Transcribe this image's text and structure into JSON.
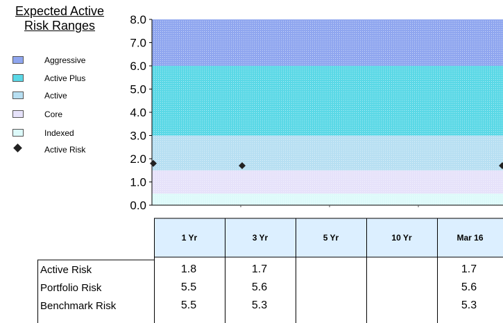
{
  "legend": {
    "title_line1": "Expected Active",
    "title_line2": "Risk Ranges",
    "items": [
      {
        "label": "Aggressive",
        "color": "#8fa6ef",
        "kind": "swatch"
      },
      {
        "label": "Active Plus",
        "color": "#5ad8e6",
        "kind": "swatch"
      },
      {
        "label": "Active",
        "color": "#b7dff2",
        "kind": "swatch"
      },
      {
        "label": "Core",
        "color": "#e6e2fa",
        "kind": "swatch"
      },
      {
        "label": "Indexed",
        "color": "#ddfafa",
        "kind": "swatch"
      },
      {
        "label": "Active Risk",
        "color": "#222222",
        "kind": "diamond"
      }
    ]
  },
  "chart_data": {
    "type": "scatter",
    "title": "",
    "xlabel": "",
    "ylabel": "",
    "ylim": [
      0,
      8
    ],
    "yticks": [
      "0.0",
      "1.0",
      "2.0",
      "3.0",
      "4.0",
      "5.0",
      "6.0",
      "7.0",
      "8.0"
    ],
    "grid": false,
    "categories": [
      "1 Yr",
      "3 Yr",
      "5 Yr",
      "10 Yr",
      "Mar 16"
    ],
    "bands": [
      {
        "name": "Indexed",
        "from": 0,
        "to": 0.5,
        "color": "#ddfafa"
      },
      {
        "name": "Core",
        "from": 0.5,
        "to": 1.5,
        "color": "#e6e2fa"
      },
      {
        "name": "Active",
        "from": 1.5,
        "to": 3.0,
        "color": "#b7dff2"
      },
      {
        "name": "Active Plus",
        "from": 3.0,
        "to": 6.0,
        "color": "#5ad8e6"
      },
      {
        "name": "Aggressive",
        "from": 6.0,
        "to": 8.0,
        "color": "#8fa6ef"
      }
    ],
    "series": [
      {
        "name": "Active Risk",
        "values": [
          1.8,
          1.7,
          null,
          null,
          1.7
        ]
      }
    ]
  },
  "table": {
    "headers": [
      "1 Yr",
      "3 Yr",
      "5 Yr",
      "10 Yr",
      "Mar 16"
    ],
    "rows": [
      {
        "label": "Active Risk",
        "values": [
          "1.8",
          "1.7",
          "",
          "",
          "1.7"
        ]
      },
      {
        "label": "Portfolio Risk",
        "values": [
          "5.5",
          "5.6",
          "",
          "",
          "5.6"
        ]
      },
      {
        "label": "Benchmark Risk",
        "values": [
          "5.5",
          "5.3",
          "",
          "",
          "5.3"
        ]
      }
    ]
  }
}
